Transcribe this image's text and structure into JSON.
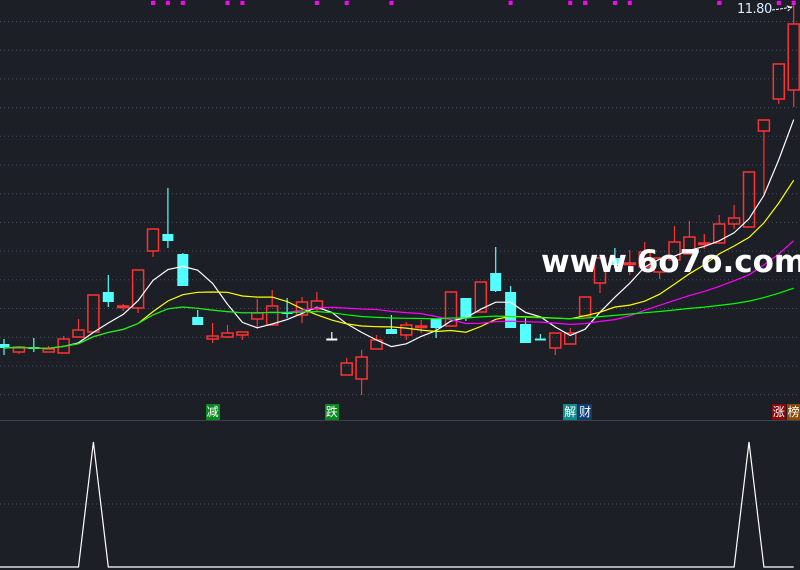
{
  "chart_data": {
    "type": "candlestick",
    "price_label": "11.80",
    "ylim": [
      3.5,
      11.9
    ],
    "grid": true,
    "colors": {
      "up": "#ff3232",
      "down": "#54ffff",
      "flat": "#ffffff",
      "background": "#1c1f26",
      "grid": "#4a4f5a",
      "marker": "#ff00ff",
      "indicator": "#ffffff"
    },
    "ohlc": [
      [
        5.02,
        4.94,
        5.12,
        4.8
      ],
      [
        4.86,
        4.96,
        4.98,
        4.82
      ],
      [
        4.96,
        4.92,
        5.14,
        4.86
      ],
      [
        4.86,
        4.92,
        4.98,
        4.86
      ],
      [
        4.84,
        5.12,
        5.18,
        4.84
      ],
      [
        5.16,
        5.3,
        5.52,
        5.16
      ],
      [
        5.26,
        6.0,
        6.0,
        5.26
      ],
      [
        6.06,
        5.86,
        6.4,
        5.76
      ],
      [
        5.76,
        5.78,
        5.82,
        5.68
      ],
      [
        5.74,
        6.5,
        6.5,
        5.64
      ],
      [
        6.88,
        7.32,
        7.32,
        6.76
      ],
      [
        7.22,
        7.08,
        8.14,
        6.94
      ],
      [
        6.82,
        6.18,
        6.84,
        6.18
      ],
      [
        5.56,
        5.4,
        5.7,
        5.4
      ],
      [
        5.12,
        5.18,
        5.44,
        5.04
      ],
      [
        5.16,
        5.24,
        5.4,
        5.14
      ],
      [
        5.2,
        5.26,
        5.26,
        5.1
      ],
      [
        5.52,
        5.64,
        5.92,
        5.32
      ],
      [
        5.4,
        5.78,
        6.1,
        5.4
      ],
      [
        5.66,
        5.62,
        5.94,
        5.54
      ],
      [
        5.6,
        5.86,
        5.96,
        5.44
      ],
      [
        5.72,
        5.88,
        6.06,
        5.66
      ],
      [
        5.12,
        5.12,
        5.26,
        5.12
      ],
      [
        4.4,
        4.64,
        4.74,
        4.4
      ],
      [
        4.32,
        4.76,
        4.9,
        4.0
      ],
      [
        4.92,
        5.1,
        5.2,
        4.92
      ],
      [
        5.32,
        5.22,
        5.6,
        5.22
      ],
      [
        5.2,
        5.4,
        5.46,
        5.1
      ],
      [
        5.36,
        5.38,
        5.5,
        5.24
      ],
      [
        5.52,
        5.34,
        5.52,
        5.14
      ],
      [
        5.38,
        6.06,
        6.06,
        5.38
      ],
      [
        5.94,
        5.54,
        5.94,
        5.48
      ],
      [
        5.66,
        6.26,
        6.26,
        5.66
      ],
      [
        6.44,
        6.08,
        6.96,
        6.06
      ],
      [
        6.06,
        5.34,
        6.18,
        5.34
      ],
      [
        5.42,
        5.04,
        5.54,
        5.04
      ],
      [
        5.12,
        5.1,
        5.22,
        5.1
      ],
      [
        4.94,
        5.24,
        5.24,
        4.8
      ],
      [
        5.02,
        5.24,
        5.34,
        5.02
      ],
      [
        5.58,
        5.96,
        5.96,
        5.58
      ],
      [
        6.24,
        6.74,
        6.74,
        6.04
      ],
      [
        6.74,
        6.6,
        6.94,
        6.54
      ],
      [
        6.62,
        6.64,
        6.9,
        6.4
      ],
      [
        6.56,
        6.86,
        7.06,
        6.56
      ],
      [
        6.46,
        6.74,
        6.74,
        6.32
      ],
      [
        6.7,
        7.06,
        7.38,
        6.7
      ],
      [
        6.82,
        7.16,
        7.48,
        6.82
      ],
      [
        7.02,
        7.04,
        7.22,
        6.92
      ],
      [
        7.04,
        7.42,
        7.6,
        7.04
      ],
      [
        7.42,
        7.54,
        7.8,
        7.32
      ],
      [
        7.36,
        8.46,
        8.46,
        7.36
      ],
      [
        9.28,
        9.5,
        9.5,
        8.02
      ],
      [
        9.92,
        10.62,
        10.62,
        9.82
      ],
      [
        10.1,
        11.42,
        11.8,
        9.76
      ]
    ],
    "moving_averages": [
      {
        "period": 5,
        "color": "#ffffff"
      },
      {
        "period": 10,
        "color": "#ffff00"
      },
      {
        "period": 20,
        "color": "#ff00ff"
      },
      {
        "period": 60,
        "color": "#00ff00"
      }
    ],
    "top_markers": [
      10,
      11,
      12,
      15,
      16,
      21,
      23,
      26,
      34,
      38,
      39,
      41,
      42,
      48,
      52,
      53
    ],
    "signals": [
      {
        "index": 14,
        "text": "减",
        "color": "#0a8a1e"
      },
      {
        "index": 22,
        "text": "跌",
        "color": "#0a8a1e"
      },
      {
        "index": 38,
        "text": "解",
        "color": "#0f8a8a"
      },
      {
        "index": 39,
        "text": "财",
        "color": "#0d3d73"
      },
      {
        "index": 52,
        "text": "涨",
        "color": "#8a0a0a"
      },
      {
        "index": 53,
        "text": "榜",
        "color": "#8a4a0a"
      }
    ],
    "indicator": {
      "spikes": [
        6,
        50
      ],
      "ylim": [
        0,
        1
      ]
    }
  },
  "watermark": "www.6o7o.com"
}
